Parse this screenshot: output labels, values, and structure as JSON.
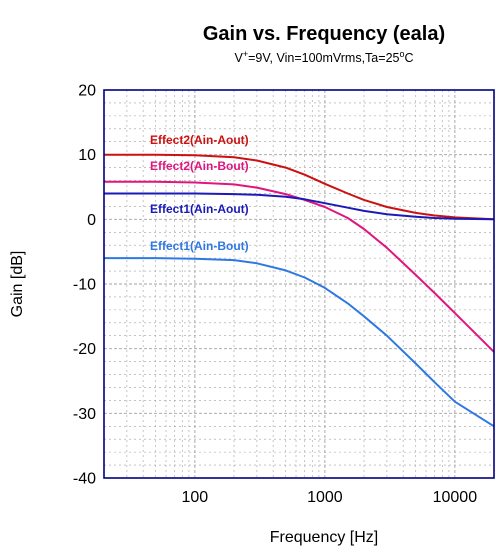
{
  "chart_data": {
    "type": "line",
    "title": "Gain vs. Frequency (eala)",
    "subtitle": {
      "lead": "V",
      "lead_sup": "+",
      "mid": "=9V, Vin=100mVrms,Ta=25",
      "mid_sup": "o",
      "tail": "C"
    },
    "xlabel": "Frequency [Hz]",
    "ylabel": "Gain [dB]",
    "x_scale": "log",
    "xlim": [
      20,
      20000
    ],
    "ylim": [
      -40,
      20
    ],
    "grid": true,
    "x_ticks": [
      {
        "value": 100,
        "label": "100"
      },
      {
        "value": 1000,
        "label": "1000"
      },
      {
        "value": 10000,
        "label": "10000"
      }
    ],
    "y_ticks": [
      {
        "value": 20,
        "label": "20"
      },
      {
        "value": 10,
        "label": "10"
      },
      {
        "value": 0,
        "label": "0"
      },
      {
        "value": -10,
        "label": "-10"
      },
      {
        "value": -20,
        "label": "-20"
      },
      {
        "value": -30,
        "label": "-30"
      },
      {
        "value": -40,
        "label": "-40"
      }
    ],
    "series": [
      {
        "name": "Effect2(Ain-Aout)",
        "color": "#cc1111",
        "x": [
          20,
          50,
          100,
          200,
          300,
          500,
          700,
          1000,
          1500,
          2000,
          3000,
          5000,
          7000,
          10000,
          20000
        ],
        "y": [
          10.0,
          10.0,
          9.9,
          9.6,
          9.1,
          8.0,
          6.9,
          5.5,
          4.0,
          3.0,
          1.9,
          1.0,
          0.6,
          0.3,
          0.0
        ]
      },
      {
        "name": "Effect2(Ain-Bout)",
        "color": "#e0157e",
        "x": [
          20,
          50,
          100,
          200,
          300,
          500,
          700,
          1000,
          1500,
          2000,
          3000,
          5000,
          7000,
          10000,
          20000
        ],
        "y": [
          5.8,
          5.8,
          5.7,
          5.4,
          4.9,
          3.9,
          3.0,
          1.9,
          0.2,
          -1.5,
          -4.4,
          -8.6,
          -11.4,
          -14.5,
          -20.5
        ]
      },
      {
        "name": "Effect1(Ain-Aout)",
        "color": "#1a1ab8",
        "x": [
          20,
          50,
          100,
          200,
          300,
          500,
          700,
          1000,
          1500,
          2000,
          3000,
          5000,
          7000,
          10000,
          20000
        ],
        "y": [
          4.0,
          4.0,
          4.0,
          3.9,
          3.8,
          3.5,
          3.1,
          2.5,
          1.8,
          1.3,
          0.8,
          0.4,
          0.2,
          0.1,
          0.0
        ]
      },
      {
        "name": "Effect1(Ain-Bout)",
        "color": "#2f78e4",
        "x": [
          20,
          50,
          100,
          200,
          300,
          500,
          700,
          1000,
          1500,
          2000,
          3000,
          5000,
          7000,
          10000,
          20000
        ],
        "y": [
          -6.0,
          -6.0,
          -6.1,
          -6.3,
          -6.8,
          -7.9,
          -9.0,
          -10.6,
          -13.0,
          -15.0,
          -18.0,
          -22.3,
          -25.2,
          -28.2,
          -32.0
        ]
      }
    ]
  }
}
